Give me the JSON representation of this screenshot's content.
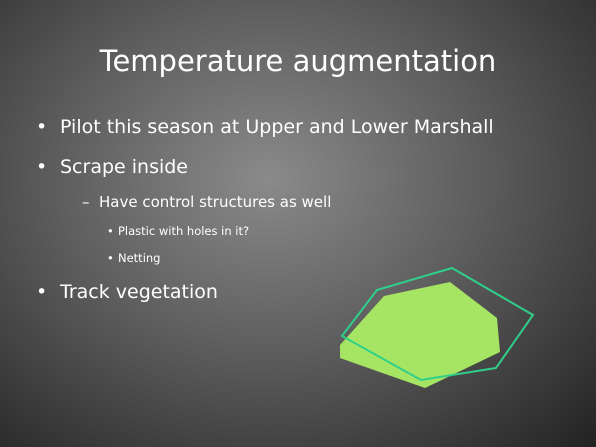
{
  "slide": {
    "title": "Temperature augmentation",
    "bullets": [
      {
        "text": "Pilot this season at Upper and Lower Marshall"
      },
      {
        "text": "Scrape inside",
        "children": [
          {
            "text": "Have control structures as well",
            "children": [
              {
                "text": "Plastic with holes in it?"
              },
              {
                "text": "Netting"
              }
            ]
          }
        ]
      },
      {
        "text": "Track vegetation"
      }
    ]
  }
}
